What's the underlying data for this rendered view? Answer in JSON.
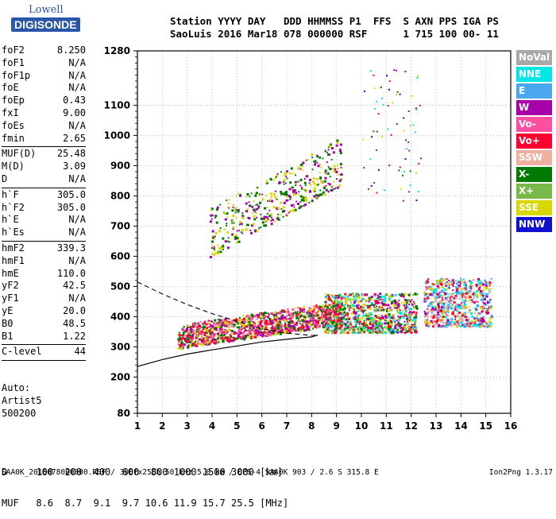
{
  "logo": {
    "line1": "Lowell",
    "line2": "DIGISONDE"
  },
  "header": {
    "line1": "Station YYYY DAY   DDD HHMMSS P1  FFS  S AXN PPS IGA PS",
    "line2": "SaoLuis 2016 Mar18 078 000000 RSF      1 715 100 00- 11"
  },
  "params": [
    {
      "k": "foF2",
      "v": "8.250"
    },
    {
      "k": "foF1",
      "v": "N/A"
    },
    {
      "k": "foF1p",
      "v": "N/A"
    },
    {
      "k": "foE",
      "v": "N/A"
    },
    {
      "k": "foEp",
      "v": "0.43"
    },
    {
      "k": "fxI",
      "v": "9.00"
    },
    {
      "k": "foEs",
      "v": "N/A"
    },
    {
      "k": "fmin",
      "v": "2.65"
    },
    {
      "sep": true
    },
    {
      "k": "MUF(D)",
      "v": "25.48"
    },
    {
      "k": "M(D)",
      "v": "3.09"
    },
    {
      "k": "D",
      "v": "N/A"
    },
    {
      "sep": true
    },
    {
      "k": "h`F",
      "v": "305.0"
    },
    {
      "k": "h`F2",
      "v": "305.0"
    },
    {
      "k": "h`E",
      "v": "N/A"
    },
    {
      "k": "h`Es",
      "v": "N/A"
    },
    {
      "sep": true
    },
    {
      "k": "hmF2",
      "v": "339.3"
    },
    {
      "k": "hmF1",
      "v": "N/A"
    },
    {
      "k": "hmE",
      "v": "110.0"
    },
    {
      "k": "yF2",
      "v": "42.5"
    },
    {
      "k": "yF1",
      "v": "N/A"
    },
    {
      "k": "yE",
      "v": "20.0"
    },
    {
      "k": "B0",
      "v": "48.5"
    },
    {
      "k": "B1",
      "v": "1.22"
    },
    {
      "sep": true
    },
    {
      "k": "C-level",
      "v": "44"
    },
    {
      "sep": true
    }
  ],
  "auto": {
    "line1": "Auto:",
    "line2": "Artist5",
    "line3": "500200"
  },
  "dmuf": {
    "d_row": "D     100  200  400  600  800 1000 1500 3000 [km]",
    "muf_row": "MUF   8.6  8.7  9.1  9.7 10.6 11.9 15.7 25.5 [MHz]"
  },
  "footer": "SAA0K_2016078000000.RSF / 300fx256h 50 kHz 5.0 km / DPS-4 SAA0K 903 / 2.6 S 315.8 E",
  "version": "Ion2Png 1.3.17",
  "legend": [
    {
      "label": "NoVal",
      "color": "#a8a8a8"
    },
    {
      "label": "NNE",
      "color": "#00e6e6"
    },
    {
      "label": "E",
      "color": "#4aa8f0"
    },
    {
      "label": "W",
      "color": "#a800a8"
    },
    {
      "label": "Vo-",
      "color": "#ff4fa0"
    },
    {
      "label": "Vo+",
      "color": "#ff0030"
    },
    {
      "label": "SSW",
      "color": "#f0b0a0"
    },
    {
      "label": "X-",
      "color": "#007a00"
    },
    {
      "label": "X+",
      "color": "#7ab84a"
    },
    {
      "label": "SSE",
      "color": "#d8d800"
    },
    {
      "label": "NNW",
      "color": "#1010d0"
    }
  ],
  "chart_data": {
    "type": "scatter",
    "xlabel": "",
    "ylabel": "",
    "xlim": [
      1,
      16
    ],
    "ylim": [
      80,
      1280
    ],
    "x_ticks": [
      1,
      2,
      3,
      4,
      5,
      6,
      7,
      8,
      9,
      10,
      11,
      12,
      13,
      14,
      15,
      16
    ],
    "y_ticks": [
      80,
      200,
      300,
      400,
      500,
      600,
      700,
      800,
      900,
      1000,
      1100,
      1280
    ],
    "grid": true,
    "clusters": [
      {
        "name": "O-trace F2",
        "x_range": [
          2.6,
          9.2
        ],
        "h_range": [
          300,
          420
        ],
        "colors": [
          "#ff4fa0",
          "#ff0030",
          "#a800a8",
          "#d8d800",
          "#007a00"
        ]
      },
      {
        "name": "F2 spread",
        "x_range": [
          8.5,
          12.2
        ],
        "h_range": [
          350,
          480
        ],
        "colors": [
          "#ff0030",
          "#a800a8",
          "#007a00",
          "#d8d800",
          "#00e6e6",
          "#7ab84a"
        ]
      },
      {
        "name": "X spread",
        "x_range": [
          12.5,
          15.2
        ],
        "h_range": [
          370,
          530
        ],
        "colors": [
          "#00e6e6",
          "#ff0030",
          "#a800a8",
          "#d8d800",
          "#4aa8f0",
          "#f0b0a0"
        ]
      },
      {
        "name": "Multiple hop",
        "x_range": [
          3.9,
          9.2
        ],
        "h_range": [
          620,
          960
        ],
        "colors": [
          "#d8d800",
          "#a800a8",
          "#007a00"
        ]
      }
    ],
    "profile_curve": [
      [
        1.0,
        235
      ],
      [
        2.0,
        258
      ],
      [
        3.0,
        276
      ],
      [
        4.0,
        290
      ],
      [
        5.0,
        303
      ],
      [
        6.0,
        316
      ],
      [
        7.0,
        325
      ],
      [
        7.6,
        330
      ],
      [
        8.0,
        333
      ],
      [
        8.25,
        339
      ]
    ],
    "extrapolated_curve": [
      [
        1.0,
        515
      ],
      [
        2.0,
        475
      ],
      [
        3.0,
        440
      ],
      [
        4.0,
        410
      ],
      [
        5.0,
        385
      ],
      [
        6.0,
        360
      ],
      [
        7.0,
        345
      ],
      [
        8.0,
        338
      ],
      [
        8.25,
        339
      ]
    ]
  }
}
